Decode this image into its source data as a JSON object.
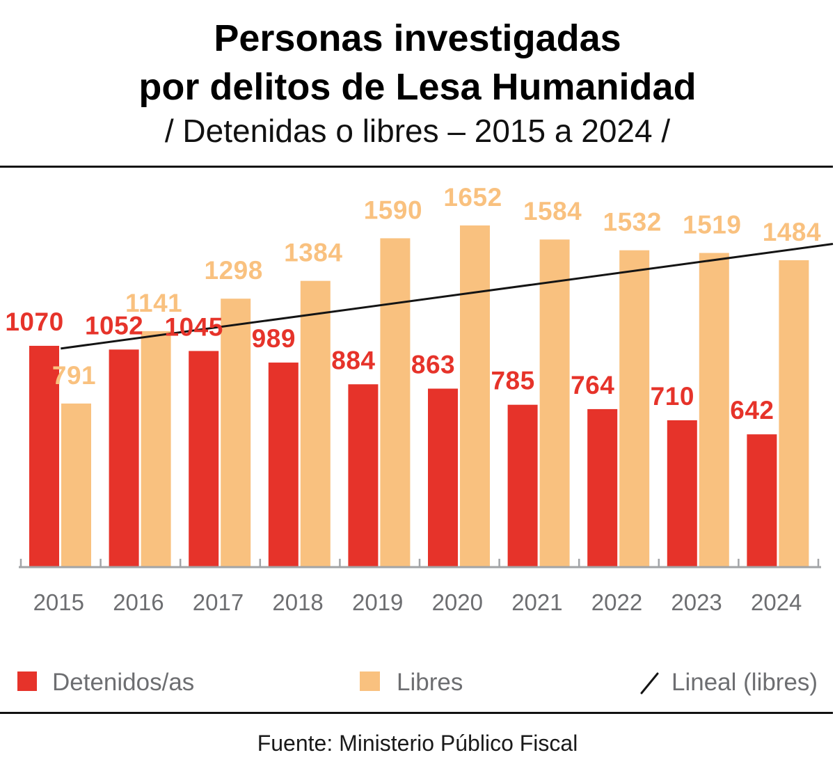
{
  "chart_data": {
    "type": "bar",
    "title": [
      "Personas investigadas",
      "por delitos de Lesa Humanidad"
    ],
    "subtitle": "/ Detenidas o libres – 2015 a 2024 /",
    "xlabel": "",
    "ylabel": "",
    "categories": [
      "2015",
      "2016",
      "2017",
      "2018",
      "2019",
      "2020",
      "2021",
      "2022",
      "2023",
      "2024"
    ],
    "series": [
      {
        "name": "Detenidos/as",
        "color": "#e6332a",
        "values": [
          1070,
          1052,
          1045,
          989,
          884,
          863,
          785,
          764,
          710,
          642
        ]
      },
      {
        "name": "Libres",
        "color": "#f9c17f",
        "values": [
          791,
          1141,
          1298,
          1384,
          1590,
          1652,
          1584,
          1532,
          1519,
          1484
        ]
      }
    ],
    "trend_line": {
      "name": "Lineal (libres)",
      "color": "#141414",
      "values": [
        1057,
        1109,
        1161,
        1214,
        1266,
        1318,
        1370,
        1422,
        1475,
        1527
      ]
    },
    "ylim": [
      0,
      1800
    ],
    "y_axis_visible": false,
    "grid": false,
    "data_labels": true,
    "legend_position": "bottom",
    "source": "Fuente: Ministerio Público Fiscal"
  },
  "colors": {
    "title_text": "#000000",
    "axis_text": "#6d6e71",
    "axis_line": "#a2a4a7",
    "divider": "#111111",
    "source_text": "#1a1a1a"
  }
}
